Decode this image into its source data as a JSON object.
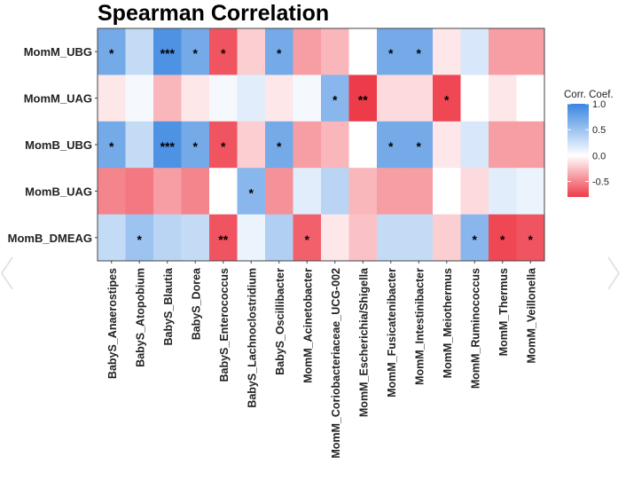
{
  "chart_data": {
    "type": "heatmap",
    "title": "Spearman Correlation",
    "rows": [
      "MomM_UBG",
      "MomM_UAG",
      "MomB_UBG",
      "MomB_UAG",
      "MomB_DMEAG"
    ],
    "columns": [
      "BabyS_Anaerostipes",
      "BabyS_Atopobium",
      "BabyS_Blautia",
      "BabyS_Dorea",
      "BabyS_Enterococcus",
      "BabyS_Lachnoclostridium",
      "BabyS_Oscillibacter",
      "MomM_Acinetobacter",
      "MomM_Coriobacteriaceae_UCG-002",
      "MomM_Escherichia/Shigella",
      "MomM_Fusicatenibacter",
      "MomM_Intestinibacter",
      "MomM_Meiothermus",
      "MomM_Ruminococcus",
      "MomM_Thermus",
      "MomM_Veillonella"
    ],
    "values": [
      [
        0.7,
        0.3,
        0.9,
        0.7,
        -0.7,
        -0.2,
        0.7,
        -0.4,
        -0.3,
        0.0,
        0.7,
        0.7,
        -0.1,
        0.2,
        -0.4,
        -0.4
      ],
      [
        -0.1,
        0.05,
        -0.3,
        -0.1,
        0.05,
        0.15,
        -0.1,
        0.05,
        0.6,
        -0.8,
        -0.15,
        -0.15,
        -0.75,
        0.0,
        -0.1,
        0.0
      ],
      [
        0.7,
        0.3,
        0.9,
        0.7,
        -0.7,
        -0.2,
        0.7,
        -0.4,
        -0.3,
        0.0,
        0.7,
        0.7,
        -0.1,
        0.2,
        -0.4,
        -0.4
      ],
      [
        -0.5,
        -0.55,
        -0.4,
        -0.5,
        0.0,
        0.6,
        -0.45,
        0.15,
        0.35,
        -0.3,
        -0.4,
        -0.4,
        0.0,
        -0.15,
        0.15,
        0.1
      ],
      [
        0.3,
        0.5,
        0.35,
        0.3,
        -0.7,
        0.1,
        0.4,
        -0.65,
        -0.1,
        -0.25,
        0.3,
        0.3,
        -0.2,
        0.6,
        -0.75,
        -0.7
      ]
    ],
    "significance": [
      [
        "*",
        "",
        "***",
        "*",
        "*",
        "",
        "*",
        "",
        "",
        "",
        "*",
        "*",
        "",
        "",
        "",
        ""
      ],
      [
        "",
        "",
        "",
        "",
        "",
        "",
        "",
        "",
        "*",
        "**",
        "",
        "",
        "*",
        "",
        "",
        ""
      ],
      [
        "*",
        "",
        "***",
        "*",
        "*",
        "",
        "*",
        "",
        "",
        "",
        "*",
        "*",
        "",
        "",
        "",
        ""
      ],
      [
        "",
        "",
        "",
        "",
        "",
        "*",
        "",
        "",
        "",
        "",
        "",
        "",
        "",
        "",
        "",
        ""
      ],
      [
        "",
        "*",
        "",
        "",
        "**",
        "",
        "",
        "*",
        "",
        "",
        "",
        "",
        "",
        "*",
        "*",
        "*"
      ]
    ],
    "legend": {
      "title": "Corr. Coef.",
      "ticks": [
        "1.0",
        "0.5",
        "0.0",
        "-0.5"
      ],
      "tick_values": [
        1.0,
        0.5,
        0.0,
        -0.5
      ],
      "range": [
        -0.8,
        1.0
      ],
      "placement": "right"
    },
    "colors": {
      "positive": "#3a86e0",
      "neutral": "#ffffff",
      "negative": "#ee3b49",
      "border": "#444444"
    }
  }
}
